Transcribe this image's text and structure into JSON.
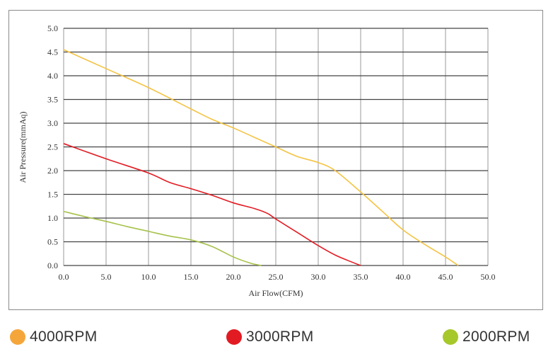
{
  "chart_data": {
    "type": "line",
    "xlabel": "Air Flow(CFM)",
    "ylabel": "Air Pressure(mmAq)",
    "xlim": [
      0,
      50
    ],
    "ylim": [
      0,
      5
    ],
    "x_ticks": [
      "0.0",
      "5.0",
      "10.0",
      "15.0",
      "20.0",
      "25.0",
      "30.0",
      "35.0",
      "40.0",
      "45.0",
      "50.0"
    ],
    "y_ticks": [
      "0.0",
      "0.5",
      "1.0",
      "1.5",
      "2.0",
      "2.5",
      "3.0",
      "3.5",
      "4.0",
      "4.5",
      "5.0"
    ],
    "grid": true,
    "legend_position": "bottom",
    "series": [
      {
        "name": "4000RPM",
        "color": "#f5c342",
        "points": [
          [
            0,
            4.55
          ],
          [
            5,
            4.15
          ],
          [
            10,
            3.75
          ],
          [
            15,
            3.3
          ],
          [
            17.5,
            3.08
          ],
          [
            20,
            2.9
          ],
          [
            22.5,
            2.7
          ],
          [
            25,
            2.5
          ],
          [
            27.5,
            2.3
          ],
          [
            30,
            2.17
          ],
          [
            32,
            2.0
          ],
          [
            35,
            1.55
          ],
          [
            37.5,
            1.15
          ],
          [
            40,
            0.75
          ],
          [
            42.5,
            0.45
          ],
          [
            45,
            0.18
          ],
          [
            46.5,
            0.0
          ]
        ]
      },
      {
        "name": "3000RPM",
        "color": "#e21b23",
        "points": [
          [
            0,
            2.57
          ],
          [
            5,
            2.25
          ],
          [
            10,
            1.95
          ],
          [
            12.5,
            1.75
          ],
          [
            15,
            1.62
          ],
          [
            17.5,
            1.48
          ],
          [
            20,
            1.32
          ],
          [
            22.5,
            1.2
          ],
          [
            24,
            1.1
          ],
          [
            25,
            0.98
          ],
          [
            27.5,
            0.7
          ],
          [
            30,
            0.42
          ],
          [
            32,
            0.22
          ],
          [
            34,
            0.07
          ],
          [
            35,
            0.0
          ]
        ]
      },
      {
        "name": "2000RPM",
        "color": "#a6c24a",
        "points": [
          [
            0,
            1.14
          ],
          [
            2.5,
            1.03
          ],
          [
            5,
            0.93
          ],
          [
            7.5,
            0.82
          ],
          [
            10,
            0.72
          ],
          [
            12.5,
            0.62
          ],
          [
            15,
            0.54
          ],
          [
            17.5,
            0.4
          ],
          [
            20,
            0.18
          ],
          [
            22,
            0.05
          ],
          [
            23.3,
            0.0
          ]
        ]
      }
    ]
  },
  "legend": [
    {
      "label": "4000RPM",
      "color": "#f5a63a"
    },
    {
      "label": "3000RPM",
      "color": "#e21b23"
    },
    {
      "label": "2000RPM",
      "color": "#a6c82a"
    }
  ]
}
